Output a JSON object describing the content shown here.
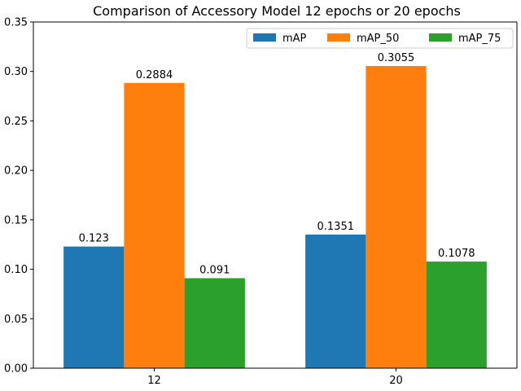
{
  "chart_data": {
    "type": "bar",
    "title": "Comparison of Accessory Model 12 epochs or 20 epochs",
    "categories": [
      "12",
      "20"
    ],
    "series": [
      {
        "name": "mAP",
        "color": "#1f77b4",
        "values": [
          0.123,
          0.1351
        ],
        "labels": [
          "0.123",
          "0.1351"
        ]
      },
      {
        "name": "mAP_50",
        "color": "#ff7f0e",
        "values": [
          0.2884,
          0.3055
        ],
        "labels": [
          "0.2884",
          "0.3055"
        ]
      },
      {
        "name": "mAP_75",
        "color": "#2ca02c",
        "values": [
          0.091,
          0.1078
        ],
        "labels": [
          "0.091",
          "0.1078"
        ]
      }
    ],
    "xlabel": "",
    "ylabel": "",
    "ylim": [
      0,
      0.35
    ],
    "yticks": [
      "0.00",
      "0.05",
      "0.10",
      "0.15",
      "0.20",
      "0.25",
      "0.30",
      "0.35"
    ],
    "grid": false,
    "legend_position": "top-right"
  }
}
